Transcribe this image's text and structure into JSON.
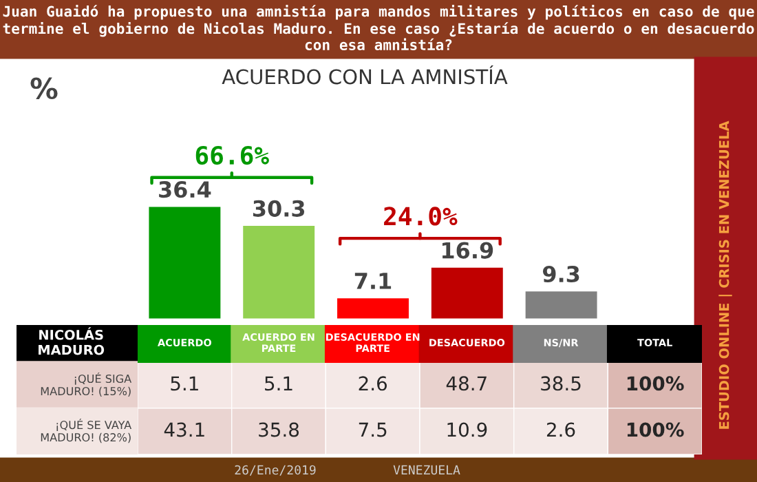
{
  "chart_data": [
    {
      "type": "bar",
      "title": "Juan Guaidó ha propuesto una amnistía para mandos militares y políticos en caso de que termine el gobierno de Nicolas Maduro. En ese caso ¿Estaría de acuerdo o en desacuerdo con esa amnistía?",
      "subtitle": "ACUERDO CON LA AMNISTÍA",
      "ylabel": "%",
      "categories": [
        null,
        null,
        null,
        null,
        null
      ],
      "values": [
        36.4,
        30.3,
        7.1,
        16.9,
        9.3
      ],
      "colors": [
        "#009900",
        "#92d050",
        "#ff0000",
        "#c00000",
        "#808080"
      ],
      "data_labels": true,
      "grid": false,
      "legend": false,
      "annotations": [
        "66.6%",
        "24.0%",
        "26/Ene/2019",
        "VENEZUELA",
        "ESTUDIO ONLINE | CRISIS EN VENEZUELA"
      ]
    },
    {
      "type": "heatmap",
      "ylabel": "NICOLÁS MADURO",
      "categories": [
        "ACUERDO",
        "ACUERDO EN PARTE",
        "DESACUERDO EN PARTE",
        "DESACUERDO",
        "NS/NR",
        "TOTAL"
      ],
      "y_categories": [
        "¡QUÉ SIGA MADURO! (15%)",
        "¡QUÉ SE VAYA MADURO! (82%)"
      ],
      "cells": [
        [
          5.1,
          5.1,
          2.6,
          48.7,
          38.5,
          100
        ],
        [
          43.1,
          35.8,
          7.5,
          10.9,
          2.6,
          100
        ]
      ],
      "cell_labels": [
        [
          "5.1",
          "5.1",
          "2.6",
          "48.7",
          "38.5",
          "100%"
        ],
        [
          "43.1",
          "35.8",
          "7.5",
          "10.9",
          "2.6",
          "100%"
        ]
      ]
    }
  ]
}
